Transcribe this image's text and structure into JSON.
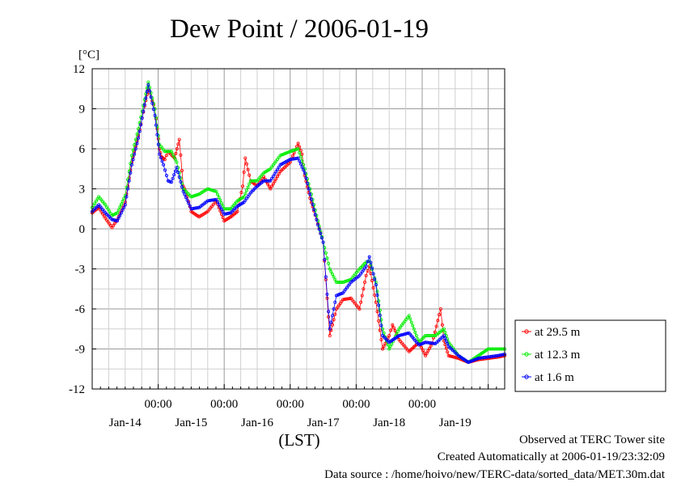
{
  "chart_data": {
    "type": "line",
    "title": "Dew Point / 2006-01-19",
    "ylabel": "[°C]",
    "xlabel": "(LST)",
    "ylim": [
      -12,
      12
    ],
    "yticks": [
      "12",
      "9",
      "6",
      "3",
      "0",
      "-3",
      "-6",
      "-9",
      "-12"
    ],
    "ytick_values": [
      12,
      9,
      6,
      3,
      0,
      -3,
      -6,
      -9,
      -12
    ],
    "xlim": [
      0,
      6.25
    ],
    "x_time_labels": [
      "00:00",
      "00:00",
      "00:00",
      "00:00",
      "00:00"
    ],
    "x_time_positions": [
      1,
      2,
      3,
      4,
      5
    ],
    "x_date_labels": [
      "Jan-14",
      "Jan-15",
      "Jan-16",
      "Jan-17",
      "Jan-18",
      "Jan-19"
    ],
    "x_date_positions": [
      0.5,
      1.5,
      2.5,
      3.5,
      4.5,
      5.5
    ],
    "x_unit": "days since 2006-01-13 00:00 LST",
    "grid": true,
    "legend_position": "right",
    "series": [
      {
        "name": "at 29.5 m",
        "color": "#ff0000",
        "x": [
          0,
          0.1,
          0.2,
          0.3,
          0.38,
          0.5,
          0.6,
          0.7,
          0.85,
          0.95,
          1.02,
          1.05,
          1.1,
          1.15,
          1.25,
          1.32,
          1.38,
          1.42,
          1.5,
          1.62,
          1.75,
          1.88,
          2.0,
          2.1,
          2.2,
          2.28,
          2.32,
          2.4,
          2.5,
          2.6,
          2.7,
          2.85,
          3.0,
          3.12,
          3.18,
          3.22,
          3.3,
          3.42,
          3.5,
          3.6,
          3.7,
          3.8,
          3.92,
          4.05,
          4.15,
          4.2,
          4.3,
          4.4,
          4.5,
          4.55,
          4.65,
          4.8,
          4.95,
          5.05,
          5.15,
          5.28,
          5.33,
          5.4,
          5.55,
          5.7,
          5.85,
          6.0,
          6.15,
          6.25
        ],
        "y": [
          1.2,
          1.6,
          0.8,
          0.1,
          0.7,
          2.0,
          5.0,
          7.0,
          10.5,
          9.0,
          6.0,
          5.4,
          5.2,
          5.8,
          5.3,
          6.7,
          3.2,
          2.8,
          1.3,
          0.9,
          1.3,
          2.1,
          0.6,
          0.9,
          1.3,
          3.2,
          5.3,
          3.6,
          3.2,
          3.9,
          3.0,
          4.3,
          5.0,
          6.4,
          5.6,
          4.0,
          2.3,
          0.4,
          -1.0,
          -8.0,
          -6.0,
          -5.3,
          -5.2,
          -6.0,
          -3.5,
          -2.8,
          -5.5,
          -9.0,
          -8.0,
          -7.2,
          -8.3,
          -9.2,
          -8.5,
          -9.5,
          -8.6,
          -6.0,
          -8.4,
          -9.5,
          -9.7,
          -10.0,
          -9.8,
          -9.7,
          -9.6,
          -9.5
        ]
      },
      {
        "name": "at 12.3 m",
        "color": "#00ee00",
        "x": [
          0,
          0.1,
          0.2,
          0.3,
          0.38,
          0.5,
          0.6,
          0.7,
          0.85,
          0.95,
          1.02,
          1.1,
          1.2,
          1.28,
          1.38,
          1.5,
          1.62,
          1.75,
          1.88,
          2.0,
          2.1,
          2.2,
          2.3,
          2.4,
          2.5,
          2.6,
          2.7,
          2.85,
          3.0,
          3.12,
          3.22,
          3.3,
          3.42,
          3.5,
          3.6,
          3.7,
          3.8,
          3.92,
          4.05,
          4.15,
          4.2,
          4.3,
          4.4,
          4.5,
          4.65,
          4.8,
          4.95,
          5.05,
          5.2,
          5.33,
          5.4,
          5.55,
          5.7,
          5.85,
          6.0,
          6.15,
          6.25
        ],
        "y": [
          1.6,
          2.4,
          1.8,
          1.0,
          1.2,
          2.5,
          5.5,
          7.5,
          11.0,
          9.0,
          6.3,
          5.8,
          5.8,
          5.0,
          3.0,
          2.4,
          2.6,
          3.0,
          2.8,
          1.5,
          1.5,
          2.1,
          2.4,
          3.6,
          3.6,
          4.2,
          4.5,
          5.5,
          5.8,
          6.0,
          4.5,
          3.0,
          0.6,
          -1.0,
          -3.0,
          -4.0,
          -4.0,
          -3.8,
          -3.0,
          -2.5,
          -2.4,
          -4.0,
          -7.5,
          -9.0,
          -7.5,
          -6.5,
          -8.5,
          -8.0,
          -8.0,
          -7.5,
          -8.5,
          -9.5,
          -10.0,
          -9.5,
          -9.0,
          -9.0,
          -9.0
        ]
      },
      {
        "name": "at 1.6 m",
        "color": "#0000ff",
        "x": [
          0,
          0.1,
          0.2,
          0.3,
          0.38,
          0.5,
          0.6,
          0.7,
          0.85,
          0.95,
          1.02,
          1.08,
          1.15,
          1.2,
          1.28,
          1.38,
          1.5,
          1.62,
          1.75,
          1.88,
          2.0,
          2.1,
          2.2,
          2.3,
          2.4,
          2.5,
          2.6,
          2.7,
          2.85,
          3.0,
          3.12,
          3.22,
          3.3,
          3.42,
          3.5,
          3.6,
          3.7,
          3.8,
          3.92,
          4.05,
          4.15,
          4.2,
          4.3,
          4.4,
          4.5,
          4.65,
          4.8,
          4.95,
          5.05,
          5.2,
          5.33,
          5.4,
          5.55,
          5.7,
          5.85,
          6.0,
          6.15,
          6.25
        ],
        "y": [
          1.3,
          1.8,
          1.2,
          0.7,
          0.6,
          1.8,
          4.8,
          6.8,
          10.8,
          8.5,
          5.6,
          4.8,
          3.6,
          3.5,
          4.6,
          2.8,
          1.5,
          1.6,
          2.1,
          2.2,
          1.1,
          1.2,
          1.7,
          2.0,
          2.7,
          3.2,
          3.6,
          3.6,
          4.8,
          5.2,
          5.3,
          4.2,
          2.6,
          0.3,
          -1.0,
          -7.5,
          -5.0,
          -4.8,
          -4.0,
          -3.5,
          -2.8,
          -2.1,
          -4.2,
          -8.0,
          -8.5,
          -8.0,
          -7.8,
          -8.7,
          -8.5,
          -8.6,
          -8.0,
          -8.8,
          -9.5,
          -10.0,
          -9.7,
          -9.6,
          -9.5,
          -9.4
        ]
      }
    ]
  },
  "footer": {
    "observed": "Observed at TERC Tower site",
    "created": "Created Automatically at 2006-01-19/23:32:09",
    "source": "Data source : /home/hoivo/new/TERC-data/sorted_data/MET.30m.dat"
  }
}
